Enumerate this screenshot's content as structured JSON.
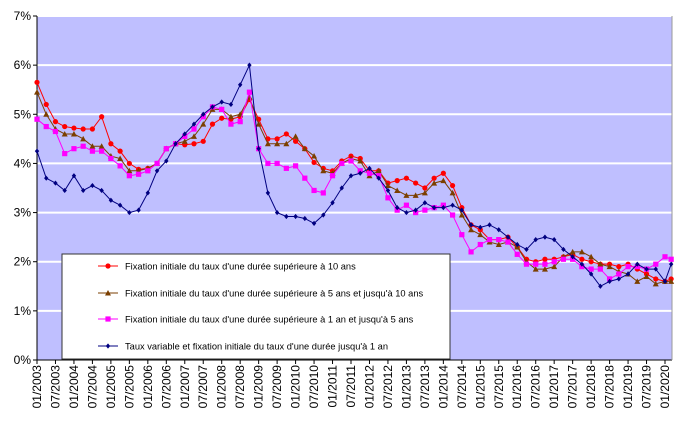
{
  "chart_data": {
    "type": "line",
    "title": "",
    "xlabel": "",
    "ylabel": "",
    "ylim": [
      0,
      7
    ],
    "y_ticks": [
      "0%",
      "1%",
      "2%",
      "3%",
      "4%",
      "5%",
      "6%",
      "7%"
    ],
    "x_ticks": [
      "01/2003",
      "07/2003",
      "01/2004",
      "07/2004",
      "01/2005",
      "07/2005",
      "01/2006",
      "07/2006",
      "01/2007",
      "07/2007",
      "01/2008",
      "07/2008",
      "01/2009",
      "07/2009",
      "01/2010",
      "07/2010",
      "01/2011",
      "07/2011",
      "01/2012",
      "07/2012",
      "01/2013",
      "07/2013",
      "01/2014",
      "07/2014",
      "01/2015",
      "07/2015",
      "01/2016",
      "07/2016",
      "01/2017",
      "07/2017",
      "01/2018",
      "07/2018",
      "01/2019",
      "07/2019",
      "01/2020"
    ],
    "grid": true,
    "background_color": "#BFBFFF",
    "legend_placement": "bottom-left",
    "x": [
      "2003-01",
      "2003-04",
      "2003-07",
      "2003-10",
      "2004-01",
      "2004-04",
      "2004-07",
      "2004-10",
      "2005-01",
      "2005-04",
      "2005-07",
      "2005-10",
      "2006-01",
      "2006-04",
      "2006-07",
      "2006-10",
      "2007-01",
      "2007-04",
      "2007-07",
      "2007-10",
      "2008-01",
      "2008-04",
      "2008-07",
      "2008-10",
      "2009-01",
      "2009-04",
      "2009-07",
      "2009-10",
      "2010-01",
      "2010-04",
      "2010-07",
      "2010-10",
      "2011-01",
      "2011-04",
      "2011-07",
      "2011-10",
      "2012-01",
      "2012-04",
      "2012-07",
      "2012-10",
      "2013-01",
      "2013-04",
      "2013-07",
      "2013-10",
      "2014-01",
      "2014-04",
      "2014-07",
      "2014-10",
      "2015-01",
      "2015-04",
      "2015-07",
      "2015-10",
      "2016-01",
      "2016-04",
      "2016-07",
      "2016-10",
      "2017-01",
      "2017-04",
      "2017-07",
      "2017-10",
      "2018-01",
      "2018-04",
      "2018-07",
      "2018-10",
      "2019-01",
      "2019-04",
      "2019-07",
      "2019-10",
      "2020-01",
      "2020-03"
    ],
    "series": [
      {
        "name": "Fixation initiale du taux d'une durée supérieure à 10 ans",
        "color": "#FF0000",
        "marker": "circle",
        "values": [
          5.65,
          5.2,
          4.85,
          4.75,
          4.72,
          4.7,
          4.7,
          4.95,
          4.4,
          4.25,
          4.0,
          3.88,
          3.9,
          4.0,
          4.3,
          4.4,
          4.38,
          4.4,
          4.45,
          4.8,
          4.92,
          4.9,
          4.95,
          5.3,
          4.9,
          4.5,
          4.5,
          4.6,
          4.45,
          4.3,
          4.02,
          3.9,
          3.85,
          4.05,
          4.15,
          4.1,
          3.85,
          3.85,
          3.6,
          3.65,
          3.7,
          3.6,
          3.5,
          3.7,
          3.8,
          3.55,
          3.1,
          2.75,
          2.65,
          2.45,
          2.45,
          2.5,
          2.3,
          2.05,
          2.0,
          2.05,
          2.05,
          2.1,
          2.15,
          2.05,
          2.0,
          1.95,
          1.95,
          1.9,
          1.95,
          1.85,
          1.75,
          1.65,
          1.6,
          1.65
        ]
      },
      {
        "name": "Fixation initiale du taux d'une durée supérieure à 5 ans et  jusqu'à 10 ans",
        "color": "#7B3F00",
        "marker": "triangle",
        "values": [
          5.45,
          5.0,
          4.7,
          4.6,
          4.6,
          4.5,
          4.35,
          4.35,
          4.15,
          4.1,
          3.85,
          3.85,
          3.9,
          4.0,
          4.3,
          4.4,
          4.45,
          4.55,
          4.8,
          5.1,
          5.1,
          4.95,
          5.0,
          5.35,
          4.8,
          4.4,
          4.4,
          4.4,
          4.55,
          4.3,
          4.15,
          3.85,
          3.8,
          4.0,
          4.1,
          4.05,
          3.75,
          3.85,
          3.55,
          3.45,
          3.35,
          3.35,
          3.4,
          3.6,
          3.65,
          3.4,
          2.95,
          2.65,
          2.55,
          2.4,
          2.35,
          2.4,
          2.3,
          2.0,
          1.85,
          1.85,
          1.9,
          2.1,
          2.2,
          2.2,
          2.1,
          1.95,
          1.9,
          1.8,
          1.75,
          1.6,
          1.7,
          1.55,
          1.6,
          1.6
        ]
      },
      {
        "name": "Fixation initiale du taux d'une durée supérieure à 1 an et  jusqu'à 5 ans",
        "color": "#FF00FF",
        "marker": "square",
        "values": [
          4.9,
          4.75,
          4.65,
          4.2,
          4.3,
          4.35,
          4.25,
          4.25,
          4.1,
          3.95,
          3.75,
          3.78,
          3.85,
          4.0,
          4.3,
          4.4,
          4.55,
          4.7,
          4.95,
          5.15,
          5.1,
          4.8,
          4.85,
          5.45,
          4.3,
          4.0,
          4.0,
          3.9,
          3.95,
          3.7,
          3.45,
          3.4,
          3.75,
          4.0,
          4.05,
          3.85,
          3.8,
          3.75,
          3.3,
          3.05,
          3.15,
          3.0,
          3.05,
          3.1,
          3.15,
          2.95,
          2.55,
          2.2,
          2.35,
          2.45,
          2.45,
          2.4,
          2.15,
          1.95,
          1.95,
          1.95,
          2.0,
          2.05,
          2.05,
          1.9,
          1.85,
          1.85,
          1.65,
          1.75,
          1.9,
          1.9,
          1.85,
          1.95,
          2.1,
          2.05
        ]
      },
      {
        "name": "Taux variable et fixation initiale du taux d'une durée jusqu'à 1 an",
        "color": "#000080",
        "marker": "diamond",
        "values": [
          4.25,
          3.7,
          3.6,
          3.45,
          3.75,
          3.45,
          3.55,
          3.45,
          3.25,
          3.15,
          3.0,
          3.05,
          3.4,
          3.85,
          4.05,
          4.4,
          4.6,
          4.8,
          5.0,
          5.15,
          5.25,
          5.2,
          5.6,
          6.0,
          4.3,
          3.4,
          3.0,
          2.92,
          2.92,
          2.88,
          2.78,
          2.95,
          3.2,
          3.5,
          3.75,
          3.8,
          3.9,
          3.7,
          3.45,
          3.1,
          3.0,
          3.05,
          3.2,
          3.1,
          3.1,
          3.15,
          3.05,
          2.75,
          2.7,
          2.75,
          2.65,
          2.5,
          2.35,
          2.25,
          2.45,
          2.5,
          2.45,
          2.25,
          2.1,
          1.95,
          1.75,
          1.5,
          1.6,
          1.65,
          1.75,
          1.95,
          1.85,
          1.85,
          1.6,
          1.95
        ]
      }
    ]
  }
}
